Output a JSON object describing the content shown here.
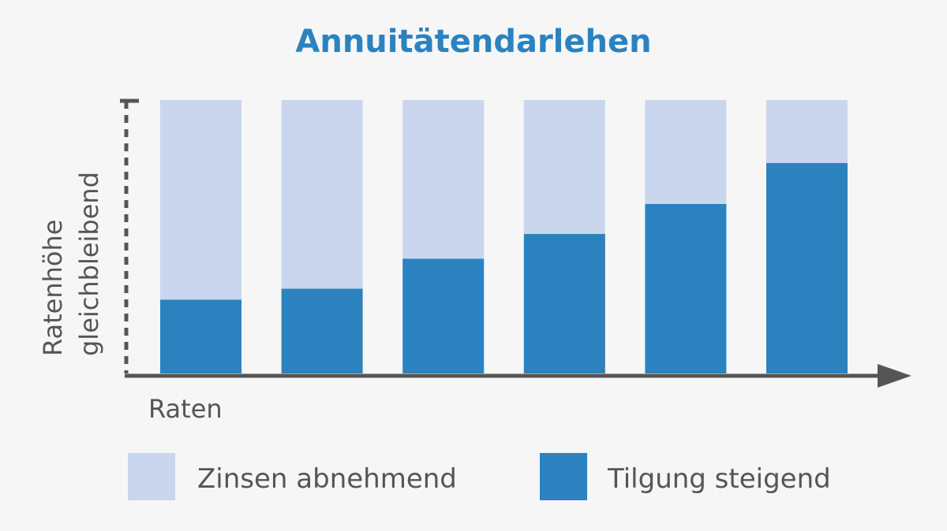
{
  "chart_data": {
    "type": "bar",
    "stacked": true,
    "title": "Annuitätendarlehen",
    "ylabel_line1": "Ratenhöhe",
    "ylabel_line2": "gleichbleibend",
    "xlabel": "Raten",
    "ylim": [
      0,
      100
    ],
    "bar_count": 6,
    "series": [
      {
        "name": "Tilgung steigend",
        "color": "#2b82bf",
        "values": [
          27,
          31,
          42,
          51,
          62,
          77
        ]
      },
      {
        "name": "Zinsen abnehmend",
        "color": "#c9d6ee",
        "values": [
          73,
          69,
          58,
          49,
          38,
          23
        ]
      }
    ],
    "legend": [
      {
        "label": "Zinsen abnehmend",
        "color": "#c9d6ee"
      },
      {
        "label": "Tilgung steigend",
        "color": "#2b82bf"
      }
    ],
    "legend_position": "bottom",
    "grid": false,
    "colors": {
      "title": "#2b82bf",
      "text": "#555555",
      "axis": "#555555"
    }
  }
}
